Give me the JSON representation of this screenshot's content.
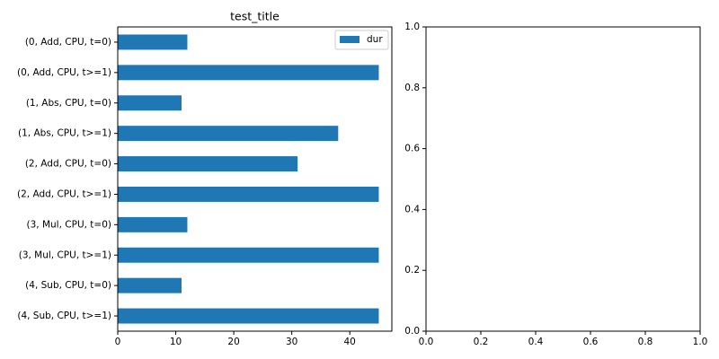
{
  "chart_data": [
    {
      "type": "barh",
      "title": "test_title",
      "categories": [
        "(0, Add, CPU, t=0)",
        "(0, Add, CPU, t>=1)",
        "(1, Abs, CPU, t=0)",
        "(1, Abs, CPU, t>=1)",
        "(2, Add, CPU, t=0)",
        "(2, Add, CPU, t>=1)",
        "(3, Mul, CPU, t=0)",
        "(3, Mul, CPU, t>=1)",
        "(4, Sub, CPU, t=0)",
        "(4, Sub, CPU, t>=1)"
      ],
      "series": [
        {
          "name": "dur",
          "color": "#1f77b4",
          "values": [
            12,
            45,
            11,
            38,
            31,
            45,
            12,
            45,
            11,
            45
          ]
        }
      ],
      "xlim": [
        0,
        47.25
      ],
      "xticks": [
        0,
        10,
        20,
        30,
        40
      ],
      "legend": "upper right"
    },
    {
      "type": "line",
      "series": [],
      "xlim": [
        0,
        1
      ],
      "ylim": [
        0,
        1
      ],
      "xticks": [
        {
          "value": 0,
          "label": "0.0"
        },
        {
          "value": 0.2,
          "label": "0.2"
        },
        {
          "value": 0.4,
          "label": "0.4"
        },
        {
          "value": 0.6,
          "label": "0.6"
        },
        {
          "value": 0.8,
          "label": "0.8"
        },
        {
          "value": 1,
          "label": "1.0"
        }
      ],
      "yticks": [
        {
          "value": 0,
          "label": "0.0"
        },
        {
          "value": 0.2,
          "label": "0.2"
        },
        {
          "value": 0.4,
          "label": "0.4"
        },
        {
          "value": 0.6,
          "label": "0.6"
        },
        {
          "value": 0.8,
          "label": "0.8"
        },
        {
          "value": 1,
          "label": "1.0"
        }
      ]
    }
  ]
}
